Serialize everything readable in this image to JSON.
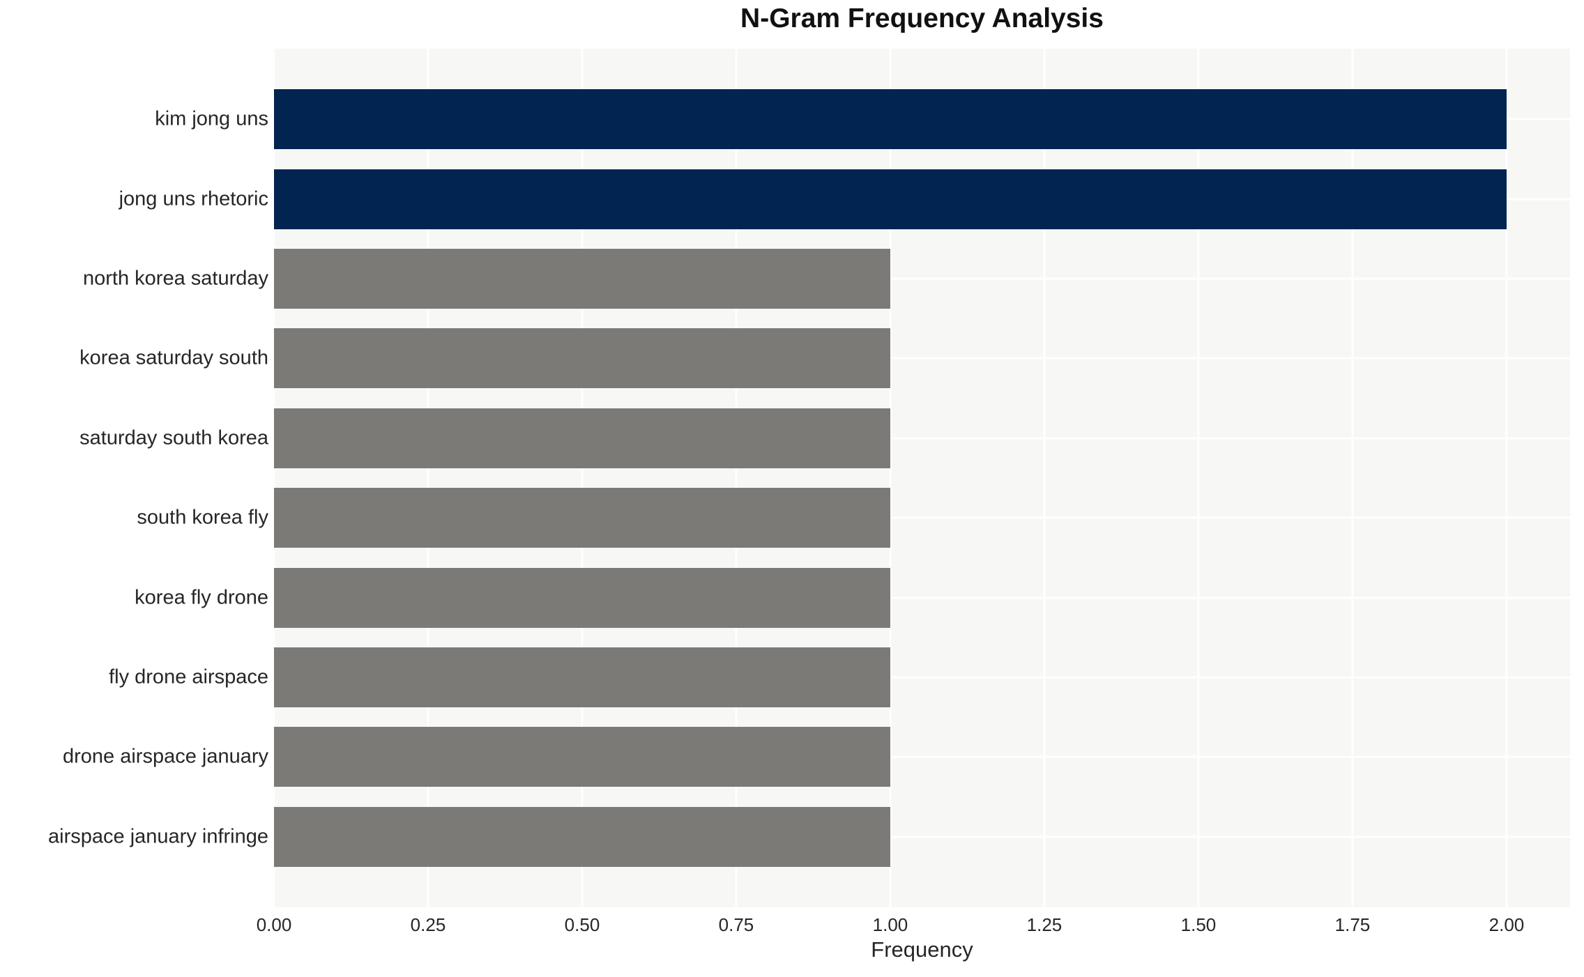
{
  "chart_data": {
    "type": "bar",
    "orientation": "horizontal",
    "title": "N-Gram Frequency Analysis",
    "xlabel": "Frequency",
    "ylabel": "",
    "categories": [
      "kim jong uns",
      "jong uns rhetoric",
      "north korea saturday",
      "korea saturday south",
      "saturday south korea",
      "south korea fly",
      "korea fly drone",
      "fly drone airspace",
      "drone airspace january",
      "airspace january infringe"
    ],
    "values": [
      2,
      2,
      1,
      1,
      1,
      1,
      1,
      1,
      1,
      1
    ],
    "bar_colors": [
      "#022450",
      "#022450",
      "#7b7a76",
      "#7b7a76",
      "#7b7a76",
      "#7b7a76",
      "#7b7a76",
      "#7b7a76",
      "#7b7a76",
      "#7b7a76"
    ],
    "x_tick_labels": [
      "0.00",
      "0.25",
      "0.50",
      "0.75",
      "1.00",
      "1.25",
      "1.50",
      "1.75",
      "2.00"
    ],
    "xlim": [
      0,
      2.103
    ],
    "grid": true,
    "legend": false,
    "colors": {
      "highlight_bar": "#022450",
      "normal_bar": "#7b7a76",
      "plot_background": "#f7f7f6",
      "gridline": "#ffffff",
      "text": "#262626",
      "title_text": "#111111"
    }
  }
}
